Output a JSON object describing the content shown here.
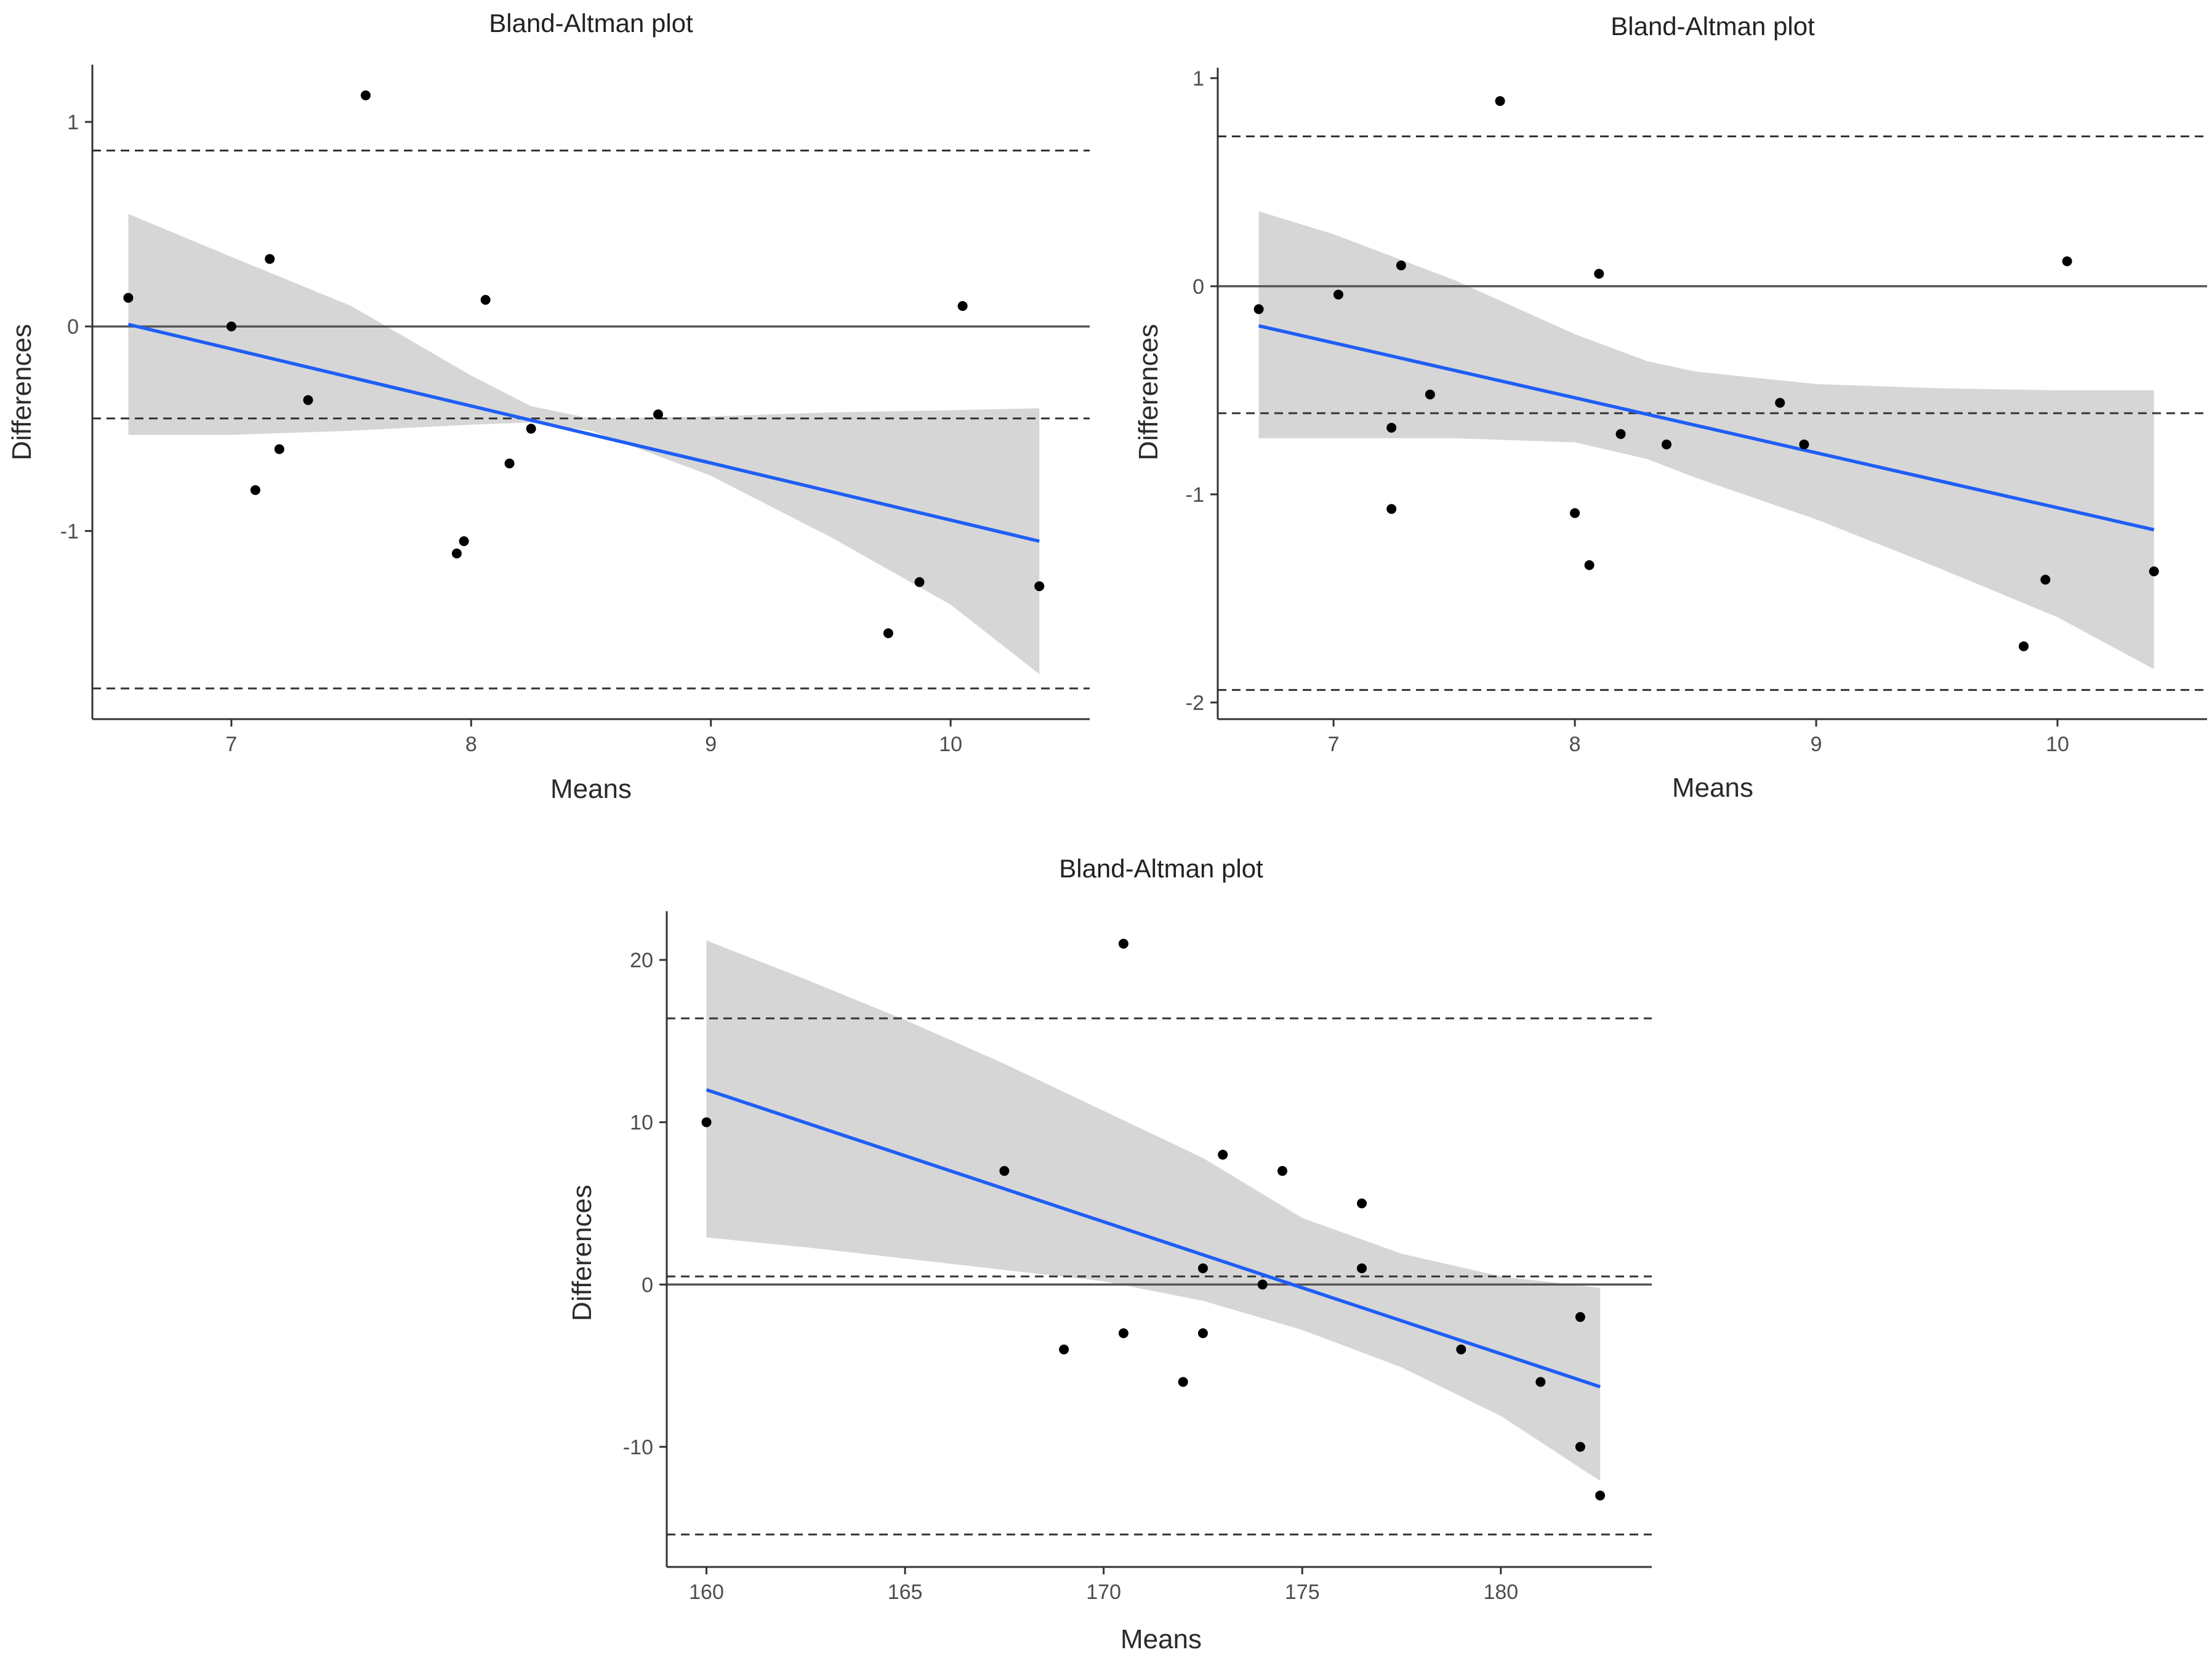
{
  "chart_data": [
    {
      "type": "scatter",
      "title": "Bland-Altman plot",
      "xlabel": "Means",
      "ylabel": "Differences",
      "xlim": [
        6.42,
        10.58
      ],
      "ylim": [
        -1.92,
        1.28
      ],
      "xticks": [
        7,
        8,
        9,
        10
      ],
      "yticks": [
        -1,
        0,
        1
      ],
      "points": {
        "x": [
          6.57,
          7.0,
          7.1,
          7.16,
          7.2,
          7.32,
          7.56,
          7.94,
          7.97,
          8.06,
          8.16,
          8.25,
          8.78,
          9.74,
          9.87,
          10.05,
          10.37
        ],
        "y": [
          0.14,
          0.0,
          -0.8,
          0.33,
          -0.6,
          -0.36,
          1.13,
          -1.11,
          -1.05,
          0.13,
          -0.67,
          -0.5,
          -0.43,
          -1.5,
          -1.25,
          0.1,
          -1.27
        ]
      },
      "reference_line": 0,
      "mean_line": -0.45,
      "limits_of_agreement": [
        -1.77,
        0.86
      ],
      "regression": {
        "x": [
          6.57,
          10.37
        ],
        "y": [
          0.01,
          -1.05
        ]
      },
      "confidence_band": {
        "x": [
          6.57,
          7.0,
          7.5,
          8.0,
          8.25,
          8.5,
          9.0,
          9.5,
          10.0,
          10.37
        ],
        "lower": [
          -0.53,
          -0.53,
          -0.51,
          -0.48,
          -0.47,
          -0.51,
          -0.73,
          -1.03,
          -1.36,
          -1.7
        ],
        "upper": [
          0.55,
          0.34,
          0.1,
          -0.24,
          -0.39,
          -0.45,
          -0.44,
          -0.42,
          -0.41,
          -0.4
        ]
      },
      "colors": {
        "points": "#000000",
        "regression": "#1f5ef5",
        "band": "#d4d4d4",
        "reference": "#555555",
        "dashed": "#333333"
      }
    },
    {
      "type": "scatter",
      "title": "Bland-Altman plot",
      "xlabel": "Means",
      "ylabel": "Differences",
      "xlim": [
        6.52,
        10.62
      ],
      "ylim": [
        -2.08,
        1.05
      ],
      "xticks": [
        7,
        8,
        9,
        10
      ],
      "yticks": [
        -2,
        -1,
        0,
        1
      ],
      "points": {
        "x": [
          6.69,
          7.02,
          7.24,
          7.24,
          7.28,
          7.4,
          7.69,
          8.0,
          8.06,
          8.1,
          8.19,
          8.38,
          8.85,
          8.95,
          9.86,
          9.95,
          10.04,
          10.4
        ],
        "y": [
          -0.11,
          -0.04,
          -0.68,
          -1.07,
          0.1,
          -0.52,
          0.89,
          -1.09,
          -1.34,
          0.06,
          -0.71,
          -0.76,
          -0.56,
          -0.76,
          -1.73,
          -1.41,
          0.12,
          -1.37
        ]
      },
      "reference_line": 0,
      "mean_line": -0.61,
      "limits_of_agreement": [
        -1.94,
        0.72
      ],
      "regression": {
        "x": [
          6.69,
          10.4
        ],
        "y": [
          -0.19,
          -1.17
        ]
      },
      "confidence_band": {
        "x": [
          6.69,
          7.0,
          7.5,
          8.0,
          8.3,
          8.5,
          9.0,
          9.5,
          10.0,
          10.4
        ],
        "lower": [
          -0.73,
          -0.73,
          -0.73,
          -0.75,
          -0.83,
          -0.92,
          -1.12,
          -1.35,
          -1.59,
          -1.84
        ],
        "upper": [
          0.36,
          0.25,
          0.03,
          -0.23,
          -0.36,
          -0.41,
          -0.47,
          -0.49,
          -0.5,
          -0.5
        ]
      },
      "colors": {
        "points": "#000000",
        "regression": "#1f5ef5",
        "band": "#d4d4d4",
        "reference": "#555555",
        "dashed": "#333333"
      }
    },
    {
      "type": "scatter",
      "title": "Bland-Altman plot",
      "xlabel": "Means",
      "ylabel": "Differences",
      "xlim": [
        159.0,
        183.8
      ],
      "ylim": [
        -17.4,
        23.0
      ],
      "xticks": [
        160,
        165,
        170,
        175,
        180
      ],
      "yticks": [
        -10,
        0,
        10,
        20
      ],
      "points": {
        "x": [
          160.0,
          167.5,
          169.0,
          170.5,
          170.5,
          172.0,
          172.5,
          172.5,
          173.0,
          174.0,
          174.5,
          176.5,
          176.5,
          179.0,
          181.0,
          182.0,
          182.0,
          182.5
        ],
        "y": [
          10.0,
          7.0,
          -4.0,
          21.0,
          -3.0,
          -6.0,
          1.0,
          -3.0,
          8.0,
          0.0,
          7.0,
          5.0,
          1.0,
          -4.0,
          -6.0,
          -2.0,
          -10.0,
          -13.0
        ]
      },
      "reference_line": 0,
      "mean_line": 0.5,
      "limits_of_agreement": [
        -15.4,
        16.4
      ],
      "regression": {
        "x": [
          160.0,
          182.5
        ],
        "y": [
          12.0,
          -6.3
        ]
      },
      "confidence_band": {
        "x": [
          160.0,
          162.5,
          165.0,
          167.5,
          170.0,
          172.5,
          175.0,
          177.5,
          180.0,
          182.5
        ],
        "lower": [
          2.9,
          2.3,
          1.6,
          0.9,
          0.2,
          -1.0,
          -2.8,
          -5.1,
          -8.1,
          -12.1
        ],
        "upper": [
          21.2,
          18.8,
          16.3,
          13.6,
          10.7,
          7.8,
          4.1,
          1.9,
          0.5,
          -0.2
        ]
      },
      "colors": {
        "points": "#000000",
        "regression": "#1f5ef5",
        "band": "#d4d4d4",
        "reference": "#555555",
        "dashed": "#333333"
      }
    }
  ]
}
